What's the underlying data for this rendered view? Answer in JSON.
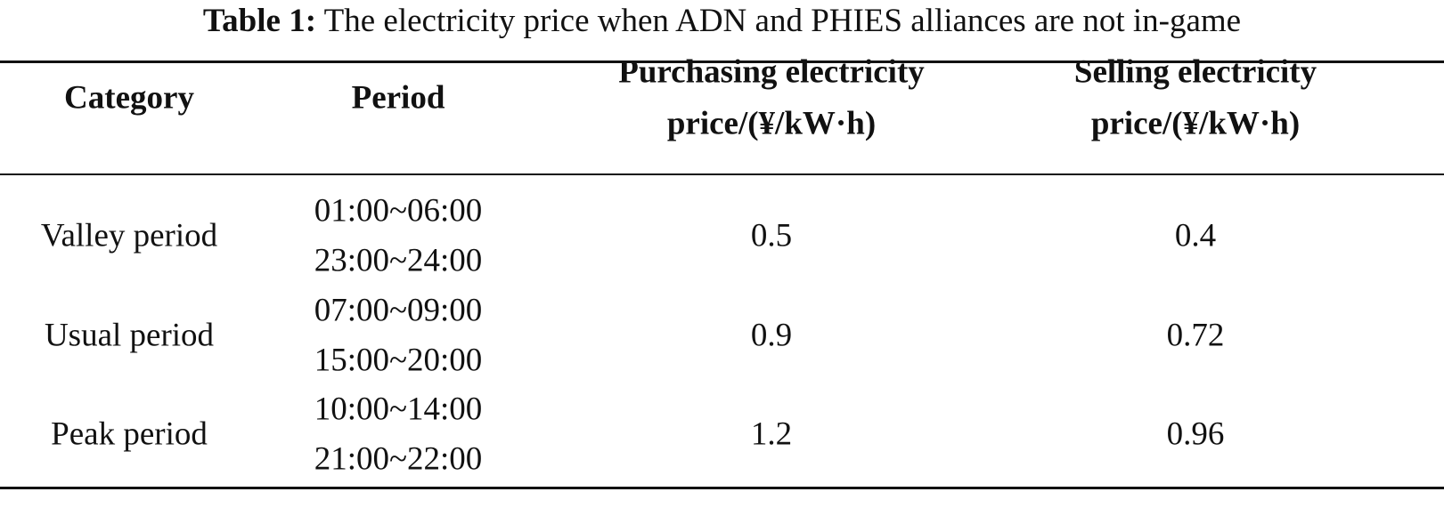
{
  "caption": {
    "label": "Table 1:",
    "text": "The electricity price when ADN and PHIES alliances are not in-game"
  },
  "table": {
    "header": [
      [
        "Category"
      ],
      [
        "Period"
      ],
      [
        "Purchasing electricity",
        "price/(¥/kW·h)"
      ],
      [
        "Selling electricity",
        "price/(¥/kW·h)"
      ]
    ],
    "rows": [
      [
        "Valley period",
        [
          "01:00~06:00",
          "23:00~24:00"
        ],
        0.5,
        0.4
      ],
      [
        "Usual period",
        [
          "07:00~09:00",
          "15:00~20:00"
        ],
        0.9,
        0.72
      ],
      [
        "Peak period",
        [
          "10:00~14:00",
          "21:00~22:00"
        ],
        1.2,
        0.96
      ]
    ]
  }
}
